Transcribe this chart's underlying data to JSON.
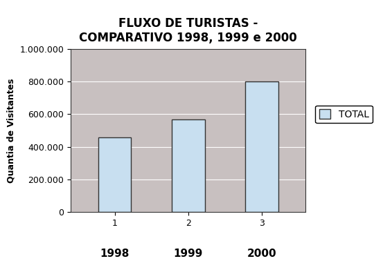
{
  "title": "FLUXO DE TURISTAS -\nCOMPARATIVO 1998, 1999 e 2000",
  "ylabel": "Quantia de Visitantes",
  "categories": [
    1,
    2,
    3
  ],
  "year_labels": [
    "1998",
    "1999",
    "2000"
  ],
  "values": [
    460000,
    570000,
    800000
  ],
  "bar_color": "#c8dff0",
  "bar_edgecolor": "#333333",
  "ylim": [
    0,
    1000000
  ],
  "yticks": [
    0,
    200000,
    400000,
    600000,
    800000,
    1000000
  ],
  "ytick_labels": [
    "0",
    "200.000",
    "400.000",
    "600.000",
    "800.000",
    "1.000.000"
  ],
  "legend_label": "TOTAL",
  "plot_bg_color": "#c8c0c0",
  "title_fontsize": 12,
  "ylabel_fontsize": 9,
  "tick_fontsize": 9,
  "year_label_fontsize": 11,
  "legend_fontsize": 10
}
